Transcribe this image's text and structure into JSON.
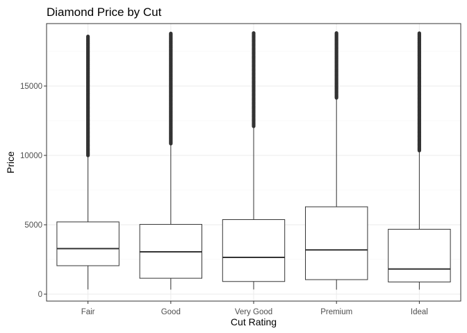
{
  "chart_data": {
    "type": "boxplot",
    "title": "Diamond Price by Cut",
    "xlabel": "Cut Rating",
    "ylabel": "Price",
    "ylim": [
      -500,
      19500
    ],
    "yticks": [
      0,
      5000,
      10000,
      15000
    ],
    "grid": true,
    "legend": "none",
    "categories": [
      "Fair",
      "Good",
      "Very Good",
      "Premium",
      "Ideal"
    ],
    "boxes": [
      {
        "category": "Fair",
        "whisker_low": 337,
        "q1": 2050,
        "median": 3282,
        "q3": 5206,
        "whisker_high": 9930,
        "outliers_from": 10000,
        "outliers_to": 18574
      },
      {
        "category": "Good",
        "whisker_low": 327,
        "q1": 1145,
        "median": 3050,
        "q3": 5028,
        "whisker_high": 10800,
        "outliers_from": 10850,
        "outliers_to": 18788
      },
      {
        "category": "Very Good",
        "whisker_low": 336,
        "q1": 912,
        "median": 2648,
        "q3": 5373,
        "whisker_high": 12050,
        "outliers_from": 12100,
        "outliers_to": 18818
      },
      {
        "category": "Premium",
        "whisker_low": 326,
        "q1": 1046,
        "median": 3185,
        "q3": 6296,
        "whisker_high": 14100,
        "outliers_from": 14150,
        "outliers_to": 18823
      },
      {
        "category": "Ideal",
        "whisker_low": 326,
        "q1": 878,
        "median": 1810,
        "q3": 4678,
        "whisker_high": 10300,
        "outliers_from": 10350,
        "outliers_to": 18806
      }
    ],
    "colors": {
      "box_fill": "#ffffff",
      "box_stroke": "#333333",
      "outlier": "#333333",
      "grid_major": "#ebebeb",
      "grid_minor": "#f5f5f5",
      "panel_border": "#333333"
    }
  }
}
